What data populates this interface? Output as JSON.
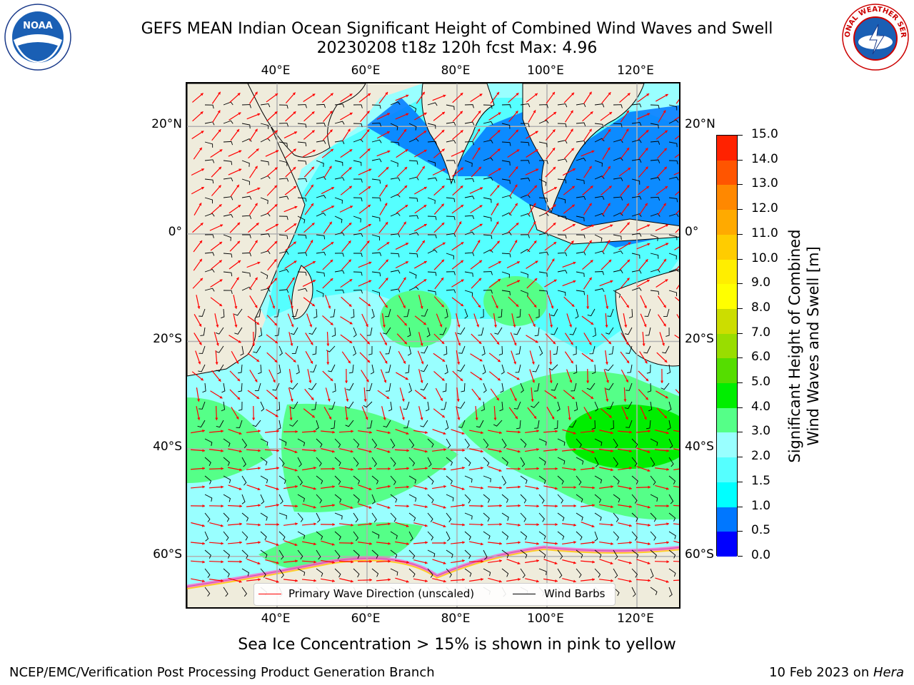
{
  "title": {
    "line1": "GEFS MEAN Indian Ocean Significant Height of Combined Wind Waves and Swell",
    "line2": "20230208 t18z 120h fcst   Max: 4.96"
  },
  "logos": {
    "left": {
      "name": "noaa-logo",
      "text": "NOAA"
    },
    "right": {
      "name": "nws-logo",
      "text": "NATIONAL WEATHER SERVICE"
    }
  },
  "map": {
    "lon_ticks": [
      "40°E",
      "60°E",
      "80°E",
      "100°E",
      "120°E"
    ],
    "lat_ticks": [
      "20°N",
      "0°",
      "20°S",
      "40°S",
      "60°S"
    ],
    "lon_values": [
      40,
      60,
      80,
      100,
      120
    ],
    "lat_values": [
      20,
      0,
      -20,
      -40,
      -60
    ],
    "extent": {
      "lon": [
        20,
        130
      ],
      "lat": [
        -70,
        28
      ]
    },
    "colors": {
      "land": "#efecdc",
      "ocean_low": "#00ffff",
      "ocean_mid": "#99ffff",
      "ocean_high": "#55ff88",
      "grid": "#b0b0b0"
    }
  },
  "legend": {
    "wave_label": "Primary Wave Direction (unscaled)",
    "wind_label": "Wind Barbs",
    "wave_color": "#ff0000",
    "wind_color": "#000000"
  },
  "colorbar": {
    "title_line1": "Significant Height of Combined",
    "title_line2": "Wind Waves and Swell [m]",
    "levels": [
      "0.0",
      "0.5",
      "1.0",
      "1.5",
      "2.0",
      "3.0",
      "4.0",
      "5.0",
      "6.0",
      "7.0",
      "8.0",
      "9.0",
      "10.0",
      "11.0",
      "12.0",
      "13.0",
      "14.0",
      "15.0"
    ],
    "colors": [
      "#0000ff",
      "#0077ff",
      "#00ffff",
      "#55ffff",
      "#99ffff",
      "#55ff88",
      "#00ee00",
      "#55dd00",
      "#99dd00",
      "#ccdd00",
      "#ffff00",
      "#ffee00",
      "#ffcc00",
      "#ffaa00",
      "#ff8800",
      "#ff5500",
      "#ff2200"
    ]
  },
  "footnote": "Sea Ice Concentration > 15% is shown in pink to yellow",
  "footer": {
    "left": "NCEP/EMC/Verification Post Processing Product Generation Branch",
    "right_prefix": "10 Feb 2023 on ",
    "right_host": "Hera"
  }
}
